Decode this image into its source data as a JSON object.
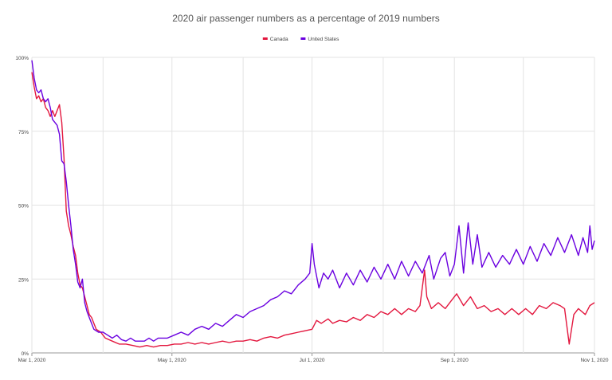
{
  "chart_data": {
    "type": "line",
    "title": "2020 air passenger numbers as a percentage of 2019 numbers",
    "xlabel": "",
    "ylabel": "",
    "x_range": [
      "2020-03-01",
      "2020-11-01"
    ],
    "ylim": [
      0,
      100
    ],
    "y_unit": "%",
    "y_ticks": [
      {
        "value": 0,
        "label": "0%"
      },
      {
        "value": 25,
        "label": "25%"
      },
      {
        "value": 50,
        "label": "50%"
      },
      {
        "value": 75,
        "label": "75%"
      },
      {
        "value": 100,
        "label": "100%"
      }
    ],
    "x_ticks": [
      {
        "date": "2020-03-01",
        "label": "Mar 1, 2020"
      },
      {
        "date": "2020-05-01",
        "label": "May 1, 2020"
      },
      {
        "date": "2020-07-01",
        "label": "Jul 1, 2020"
      },
      {
        "date": "2020-09-01",
        "label": "Sep 1, 2020"
      },
      {
        "date": "2020-11-01",
        "label": "Nov 1, 2020"
      }
    ],
    "grid": true,
    "legend_position": "top-center",
    "series": [
      {
        "name": "Canada",
        "color": "#e3173e",
        "points": [
          [
            "2020-03-01",
            95
          ],
          [
            "2020-03-02",
            90
          ],
          [
            "2020-03-03",
            86
          ],
          [
            "2020-03-04",
            87
          ],
          [
            "2020-03-05",
            85
          ],
          [
            "2020-03-06",
            86
          ],
          [
            "2020-03-07",
            83
          ],
          [
            "2020-03-08",
            82
          ],
          [
            "2020-03-09",
            80
          ],
          [
            "2020-03-10",
            82
          ],
          [
            "2020-03-11",
            80
          ],
          [
            "2020-03-12",
            82
          ],
          [
            "2020-03-13",
            84
          ],
          [
            "2020-03-14",
            78
          ],
          [
            "2020-03-15",
            66
          ],
          [
            "2020-03-16",
            48
          ],
          [
            "2020-03-17",
            43
          ],
          [
            "2020-03-18",
            40
          ],
          [
            "2020-03-19",
            36
          ],
          [
            "2020-03-20",
            33
          ],
          [
            "2020-03-21",
            27
          ],
          [
            "2020-03-22",
            23
          ],
          [
            "2020-03-23",
            22
          ],
          [
            "2020-03-24",
            19
          ],
          [
            "2020-03-25",
            16
          ],
          [
            "2020-03-26",
            13
          ],
          [
            "2020-03-27",
            12
          ],
          [
            "2020-03-28",
            10
          ],
          [
            "2020-03-29",
            8
          ],
          [
            "2020-03-31",
            7
          ],
          [
            "2020-04-02",
            5
          ],
          [
            "2020-04-05",
            4
          ],
          [
            "2020-04-08",
            3
          ],
          [
            "2020-04-11",
            3
          ],
          [
            "2020-04-14",
            2.5
          ],
          [
            "2020-04-17",
            2
          ],
          [
            "2020-04-20",
            2.5
          ],
          [
            "2020-04-23",
            2
          ],
          [
            "2020-04-26",
            2.5
          ],
          [
            "2020-04-29",
            2.5
          ],
          [
            "2020-05-02",
            3
          ],
          [
            "2020-05-05",
            3
          ],
          [
            "2020-05-08",
            3.5
          ],
          [
            "2020-05-11",
            3
          ],
          [
            "2020-05-14",
            3.5
          ],
          [
            "2020-05-17",
            3
          ],
          [
            "2020-05-20",
            3.5
          ],
          [
            "2020-05-23",
            4
          ],
          [
            "2020-05-26",
            3.5
          ],
          [
            "2020-05-29",
            4
          ],
          [
            "2020-06-01",
            4
          ],
          [
            "2020-06-04",
            4.5
          ],
          [
            "2020-06-07",
            4
          ],
          [
            "2020-06-10",
            5
          ],
          [
            "2020-06-13",
            5.5
          ],
          [
            "2020-06-16",
            5
          ],
          [
            "2020-06-19",
            6
          ],
          [
            "2020-06-22",
            6.5
          ],
          [
            "2020-06-25",
            7
          ],
          [
            "2020-06-28",
            7.5
          ],
          [
            "2020-07-01",
            8
          ],
          [
            "2020-07-03",
            11
          ],
          [
            "2020-07-05",
            10
          ],
          [
            "2020-07-08",
            11.5
          ],
          [
            "2020-07-10",
            10
          ],
          [
            "2020-07-13",
            11
          ],
          [
            "2020-07-16",
            10.5
          ],
          [
            "2020-07-19",
            12
          ],
          [
            "2020-07-22",
            11
          ],
          [
            "2020-07-25",
            13
          ],
          [
            "2020-07-28",
            12
          ],
          [
            "2020-07-31",
            14
          ],
          [
            "2020-08-03",
            13
          ],
          [
            "2020-08-06",
            15
          ],
          [
            "2020-08-09",
            13
          ],
          [
            "2020-08-12",
            15
          ],
          [
            "2020-08-15",
            14
          ],
          [
            "2020-08-17",
            16
          ],
          [
            "2020-08-19",
            28
          ],
          [
            "2020-08-20",
            19
          ],
          [
            "2020-08-22",
            15
          ],
          [
            "2020-08-25",
            17
          ],
          [
            "2020-08-28",
            15
          ],
          [
            "2020-08-31",
            18
          ],
          [
            "2020-09-02",
            20
          ],
          [
            "2020-09-05",
            16
          ],
          [
            "2020-09-08",
            19
          ],
          [
            "2020-09-11",
            15
          ],
          [
            "2020-09-14",
            16
          ],
          [
            "2020-09-17",
            14
          ],
          [
            "2020-09-20",
            15
          ],
          [
            "2020-09-23",
            13
          ],
          [
            "2020-09-26",
            15
          ],
          [
            "2020-09-29",
            13
          ],
          [
            "2020-10-02",
            15
          ],
          [
            "2020-10-05",
            13
          ],
          [
            "2020-10-08",
            16
          ],
          [
            "2020-10-11",
            15
          ],
          [
            "2020-10-14",
            17
          ],
          [
            "2020-10-17",
            16
          ],
          [
            "2020-10-19",
            15
          ],
          [
            "2020-10-21",
            3
          ],
          [
            "2020-10-23",
            13
          ],
          [
            "2020-10-25",
            15
          ],
          [
            "2020-10-28",
            13
          ],
          [
            "2020-10-30",
            16
          ],
          [
            "2020-11-01",
            17
          ]
        ]
      },
      {
        "name": "United States",
        "color": "#6a00e0",
        "points": [
          [
            "2020-03-01",
            99
          ],
          [
            "2020-03-02",
            93
          ],
          [
            "2020-03-03",
            89
          ],
          [
            "2020-03-04",
            88
          ],
          [
            "2020-03-05",
            89
          ],
          [
            "2020-03-06",
            86
          ],
          [
            "2020-03-07",
            85
          ],
          [
            "2020-03-08",
            86
          ],
          [
            "2020-03-09",
            83
          ],
          [
            "2020-03-10",
            79
          ],
          [
            "2020-03-11",
            78
          ],
          [
            "2020-03-12",
            77
          ],
          [
            "2020-03-13",
            74
          ],
          [
            "2020-03-14",
            65
          ],
          [
            "2020-03-15",
            64
          ],
          [
            "2020-03-16",
            58
          ],
          [
            "2020-03-17",
            50
          ],
          [
            "2020-03-18",
            43
          ],
          [
            "2020-03-19",
            35
          ],
          [
            "2020-03-20",
            30
          ],
          [
            "2020-03-21",
            24
          ],
          [
            "2020-03-22",
            22
          ],
          [
            "2020-03-23",
            25
          ],
          [
            "2020-03-24",
            17
          ],
          [
            "2020-03-25",
            14
          ],
          [
            "2020-03-26",
            12
          ],
          [
            "2020-03-27",
            10
          ],
          [
            "2020-03-28",
            8
          ],
          [
            "2020-03-30",
            7
          ],
          [
            "2020-04-01",
            7
          ],
          [
            "2020-04-03",
            6
          ],
          [
            "2020-04-05",
            5
          ],
          [
            "2020-04-07",
            6
          ],
          [
            "2020-04-09",
            4.5
          ],
          [
            "2020-04-11",
            4
          ],
          [
            "2020-04-13",
            5
          ],
          [
            "2020-04-15",
            4
          ],
          [
            "2020-04-17",
            4
          ],
          [
            "2020-04-19",
            4
          ],
          [
            "2020-04-21",
            5
          ],
          [
            "2020-04-23",
            4
          ],
          [
            "2020-04-25",
            5
          ],
          [
            "2020-04-27",
            5
          ],
          [
            "2020-04-29",
            5
          ],
          [
            "2020-05-02",
            6
          ],
          [
            "2020-05-05",
            7
          ],
          [
            "2020-05-08",
            6
          ],
          [
            "2020-05-11",
            8
          ],
          [
            "2020-05-14",
            9
          ],
          [
            "2020-05-17",
            8
          ],
          [
            "2020-05-20",
            10
          ],
          [
            "2020-05-23",
            9
          ],
          [
            "2020-05-26",
            11
          ],
          [
            "2020-05-29",
            13
          ],
          [
            "2020-06-01",
            12
          ],
          [
            "2020-06-04",
            14
          ],
          [
            "2020-06-07",
            15
          ],
          [
            "2020-06-10",
            16
          ],
          [
            "2020-06-13",
            18
          ],
          [
            "2020-06-16",
            19
          ],
          [
            "2020-06-19",
            21
          ],
          [
            "2020-06-22",
            20
          ],
          [
            "2020-06-25",
            23
          ],
          [
            "2020-06-28",
            25
          ],
          [
            "2020-06-30",
            27
          ],
          [
            "2020-07-01",
            37
          ],
          [
            "2020-07-02",
            30
          ],
          [
            "2020-07-04",
            22
          ],
          [
            "2020-07-06",
            27
          ],
          [
            "2020-07-08",
            25
          ],
          [
            "2020-07-10",
            28
          ],
          [
            "2020-07-13",
            22
          ],
          [
            "2020-07-16",
            27
          ],
          [
            "2020-07-19",
            23
          ],
          [
            "2020-07-22",
            28
          ],
          [
            "2020-07-25",
            24
          ],
          [
            "2020-07-28",
            29
          ],
          [
            "2020-07-31",
            25
          ],
          [
            "2020-08-03",
            30
          ],
          [
            "2020-08-06",
            25
          ],
          [
            "2020-08-09",
            31
          ],
          [
            "2020-08-12",
            26
          ],
          [
            "2020-08-15",
            31
          ],
          [
            "2020-08-18",
            27
          ],
          [
            "2020-08-21",
            33
          ],
          [
            "2020-08-23",
            25
          ],
          [
            "2020-08-26",
            32
          ],
          [
            "2020-08-28",
            34
          ],
          [
            "2020-08-30",
            26
          ],
          [
            "2020-09-01",
            30
          ],
          [
            "2020-09-03",
            43
          ],
          [
            "2020-09-05",
            27
          ],
          [
            "2020-09-07",
            44
          ],
          [
            "2020-09-09",
            30
          ],
          [
            "2020-09-11",
            40
          ],
          [
            "2020-09-13",
            29
          ],
          [
            "2020-09-16",
            34
          ],
          [
            "2020-09-19",
            29
          ],
          [
            "2020-09-22",
            33
          ],
          [
            "2020-09-25",
            30
          ],
          [
            "2020-09-28",
            35
          ],
          [
            "2020-10-01",
            30
          ],
          [
            "2020-10-04",
            36
          ],
          [
            "2020-10-07",
            31
          ],
          [
            "2020-10-10",
            37
          ],
          [
            "2020-10-13",
            33
          ],
          [
            "2020-10-16",
            39
          ],
          [
            "2020-10-19",
            34
          ],
          [
            "2020-10-22",
            40
          ],
          [
            "2020-10-25",
            33
          ],
          [
            "2020-10-27",
            39
          ],
          [
            "2020-10-29",
            34
          ],
          [
            "2020-10-30",
            43
          ],
          [
            "2020-10-31",
            35
          ],
          [
            "2020-11-01",
            38
          ]
        ]
      }
    ]
  }
}
